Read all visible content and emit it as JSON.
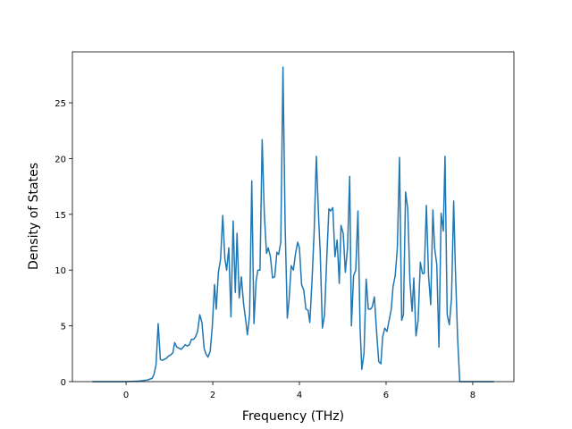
{
  "chart_data": {
    "type": "line",
    "xlabel": "Frequency (THz)",
    "ylabel": "Density of States",
    "color": "#1f77b4",
    "grid": false,
    "xlim": [
      -1.24,
      8.95
    ],
    "ylim": [
      0,
      29.57
    ],
    "xticks": [
      0,
      2,
      4,
      6,
      8
    ],
    "yticks": [
      0,
      5,
      10,
      15,
      20,
      25
    ],
    "x": [
      -0.78,
      0,
      0.3,
      0.5,
      0.6,
      0.64,
      0.69,
      0.74,
      0.79,
      0.84,
      0.88,
      0.93,
      0.98,
      1.03,
      1.08,
      1.12,
      1.17,
      1.22,
      1.27,
      1.32,
      1.36,
      1.41,
      1.46,
      1.51,
      1.56,
      1.6,
      1.65,
      1.7,
      1.75,
      1.8,
      1.84,
      1.89,
      1.94,
      1.99,
      2.04,
      2.08,
      2.13,
      2.18,
      2.23,
      2.28,
      2.32,
      2.37,
      2.42,
      2.47,
      2.52,
      2.56,
      2.61,
      2.66,
      2.71,
      2.76,
      2.8,
      2.85,
      2.9,
      2.95,
      3.0,
      3.04,
      3.09,
      3.14,
      3.19,
      3.24,
      3.28,
      3.33,
      3.38,
      3.43,
      3.48,
      3.52,
      3.57,
      3.62,
      3.67,
      3.72,
      3.76,
      3.81,
      3.86,
      3.91,
      3.96,
      4.0,
      4.05,
      4.1,
      4.15,
      4.2,
      4.24,
      4.29,
      4.34,
      4.39,
      4.44,
      4.48,
      4.53,
      4.58,
      4.63,
      4.68,
      4.72,
      4.77,
      4.82,
      4.87,
      4.92,
      4.96,
      5.01,
      5.06,
      5.11,
      5.16,
      5.2,
      5.25,
      5.3,
      5.35,
      5.4,
      5.44,
      5.49,
      5.54,
      5.59,
      5.64,
      5.68,
      5.73,
      5.78,
      5.83,
      5.88,
      5.92,
      5.97,
      6.02,
      6.07,
      6.12,
      6.16,
      6.21,
      6.26,
      6.31,
      6.36,
      6.4,
      6.45,
      6.5,
      6.55,
      6.6,
      6.64,
      6.69,
      6.74,
      6.79,
      6.84,
      6.88,
      6.93,
      6.98,
      7.03,
      7.08,
      7.12,
      7.17,
      7.22,
      7.27,
      7.32,
      7.36,
      7.41,
      7.46,
      7.51,
      7.56,
      7.6,
      7.65,
      7.7,
      8.49
    ],
    "values": [
      0,
      0,
      0.05,
      0.15,
      0.3,
      0.6,
      1.5,
      5.2,
      2.0,
      1.9,
      2.0,
      2.1,
      2.3,
      2.4,
      2.6,
      3.5,
      3.1,
      3.0,
      2.9,
      3.1,
      3.3,
      3.2,
      3.3,
      3.8,
      3.8,
      4.0,
      4.5,
      6.0,
      5.3,
      3.0,
      2.5,
      2.2,
      2.7,
      5.0,
      8.7,
      6.5,
      9.8,
      11.0,
      14.9,
      11.0,
      10.0,
      12.0,
      5.8,
      14.4,
      8.0,
      13.3,
      7.5,
      9.4,
      7.0,
      5.5,
      4.2,
      6.0,
      18.0,
      5.2,
      9.0,
      10.0,
      10.0,
      21.7,
      15.0,
      11.5,
      12.0,
      11.2,
      9.3,
      9.4,
      11.6,
      11.4,
      12.5,
      28.2,
      14.0,
      5.7,
      7.3,
      10.4,
      10.0,
      11.5,
      12.5,
      12.0,
      8.7,
      8.2,
      6.5,
      6.4,
      5.3,
      9.0,
      13.5,
      20.2,
      15.0,
      11.5,
      4.8,
      6.0,
      11.0,
      15.5,
      15.3,
      15.6,
      11.2,
      12.7,
      8.8,
      14.0,
      13.3,
      9.8,
      12.0,
      18.4,
      5.0,
      9.5,
      10.0,
      15.3,
      4.8,
      1.1,
      2.5,
      9.2,
      6.5,
      6.5,
      6.7,
      7.6,
      4.5,
      1.8,
      1.6,
      4.0,
      4.8,
      4.5,
      5.5,
      6.5,
      8.5,
      9.5,
      12.0,
      20.1,
      5.5,
      6.0,
      17.0,
      15.5,
      9.0,
      6.3,
      9.3,
      4.1,
      5.5,
      10.7,
      9.7,
      9.7,
      15.8,
      9.5,
      6.9,
      15.4,
      12.0,
      10.5,
      3.1,
      15.1,
      13.5,
      20.2,
      6.0,
      5.1,
      7.5,
      16.2,
      10.0,
      4.0,
      0,
      0
    ]
  }
}
